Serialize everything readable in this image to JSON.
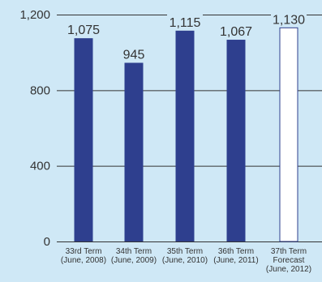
{
  "chart_data": {
    "type": "bar",
    "categories": [
      [
        "33rd Term",
        "(June, 2008)"
      ],
      [
        "34th Term",
        "(June, 2009)"
      ],
      [
        "35th Term",
        "(June, 2010)"
      ],
      [
        "36th Term",
        "(June, 2011)"
      ],
      [
        "37th Term",
        "Forecast",
        "(June, 2012)"
      ]
    ],
    "values": [
      1075,
      945,
      1115,
      1067,
      1130
    ],
    "value_labels": [
      "1,075",
      "945",
      "1,115",
      "1,067",
      "1,130"
    ],
    "forecast_index": 4,
    "ylim": [
      0,
      1200
    ],
    "yticks": [
      0,
      400,
      800,
      1200
    ],
    "ytick_labels": [
      "0",
      "400",
      "800",
      "1,200"
    ],
    "grid": true,
    "title": "",
    "xlabel": "",
    "ylabel": ""
  },
  "colors": {
    "background": "#cfe8f6",
    "bar": "#2e3f8e",
    "forecast_fill": "#ffffff",
    "forecast_stroke": "#2e3f8e",
    "grid": "#333333",
    "text": "#333333"
  }
}
